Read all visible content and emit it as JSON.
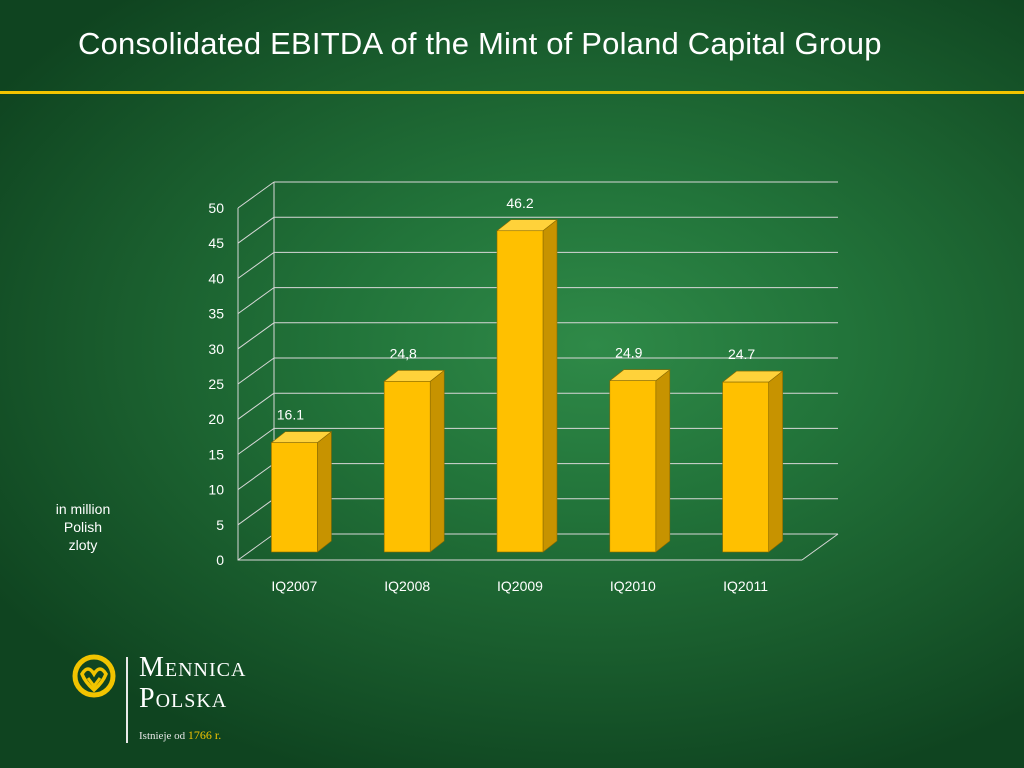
{
  "header": {
    "title": "Consolidated EBITDA of the Mint of Poland Capital Group"
  },
  "unit_label": "in million\nPolish\nzloty",
  "brand": {
    "line1": "Mennica",
    "line2": "Polska",
    "established_prefix": "Istnieje od",
    "established_year": "1766 r."
  },
  "colors": {
    "accent": "#f2c400",
    "bar_front": "#ffc000",
    "bar_side": "#c79300",
    "bar_top": "#ffd23a",
    "background": "#22743a"
  },
  "chart_data": {
    "type": "bar",
    "title": "",
    "xlabel": "",
    "ylabel": "in million Polish zloty",
    "categories": [
      "IQ2007",
      "IQ2008",
      "IQ2009",
      "IQ2010",
      "IQ2011"
    ],
    "values": [
      16.1,
      24.8,
      46.2,
      24.9,
      24.7
    ],
    "data_labels": [
      "16.1",
      "24,8",
      "46.2",
      "24.9",
      "24.7"
    ],
    "ylim": [
      0,
      50
    ],
    "yticks": [
      0,
      5,
      10,
      15,
      20,
      25,
      30,
      35,
      40,
      45,
      50
    ],
    "grid": true,
    "style": "3d"
  }
}
